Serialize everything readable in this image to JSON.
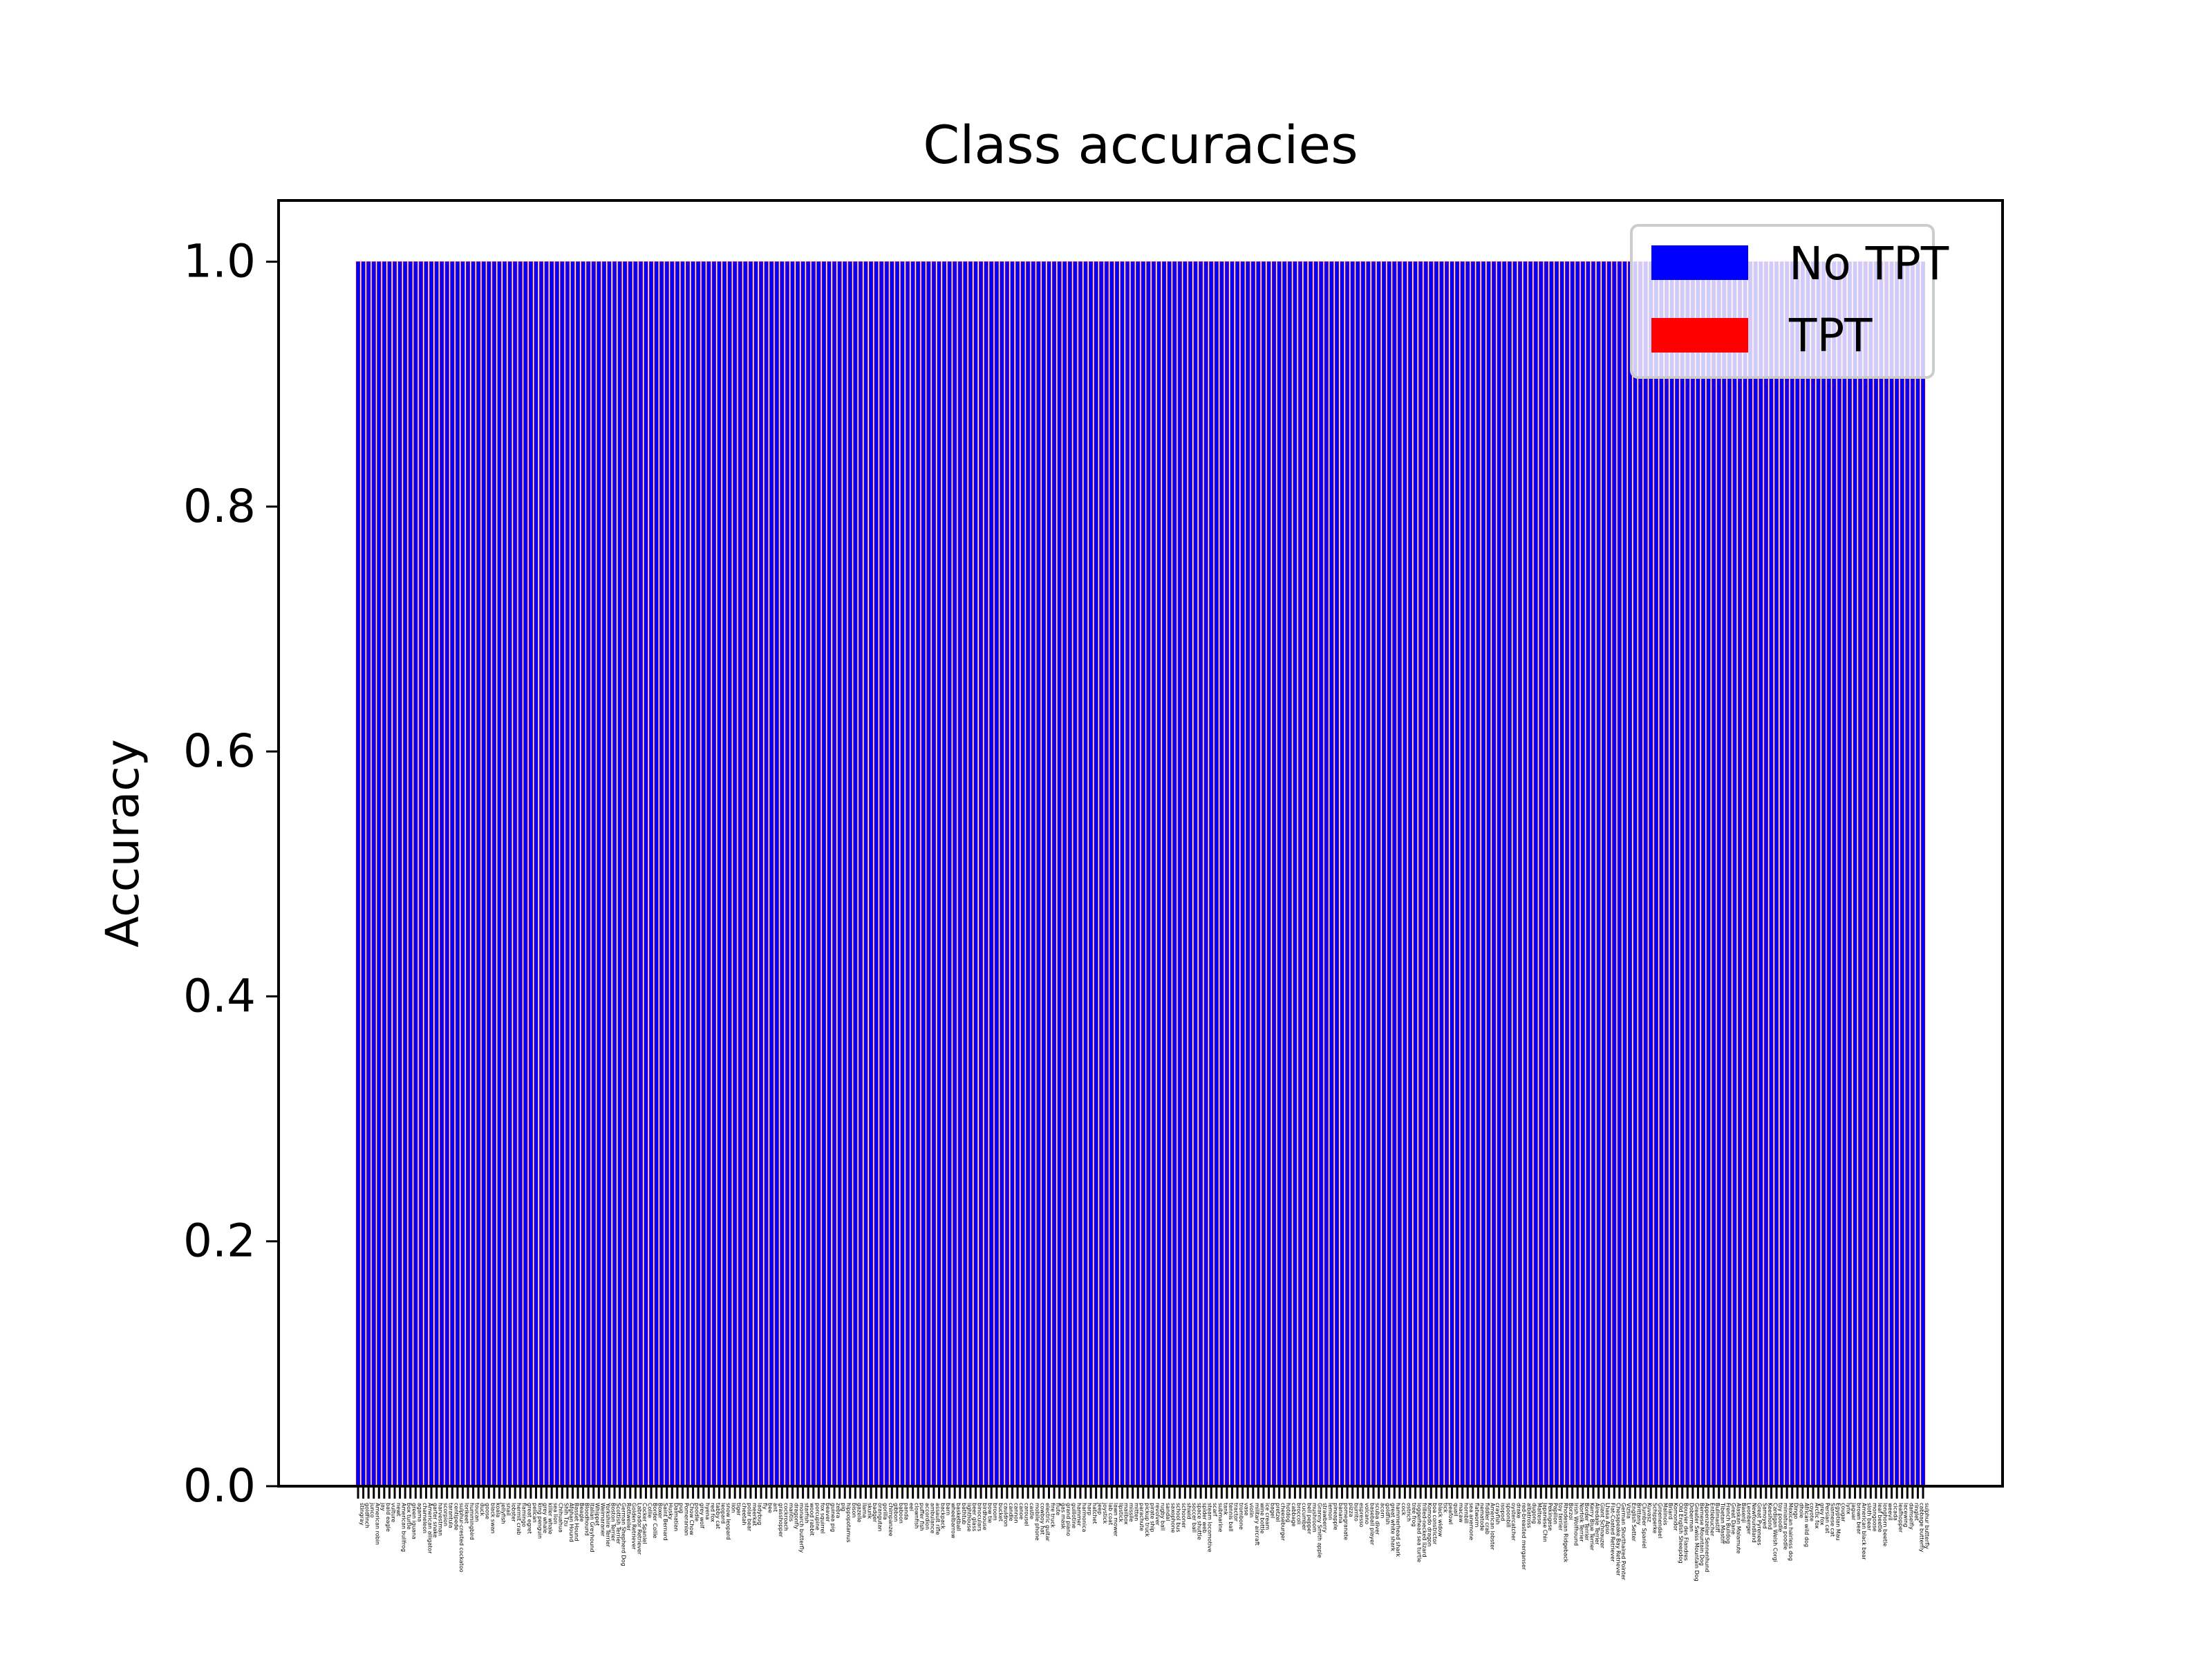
{
  "chart_data": {
    "type": "bar",
    "title": "Class accuracies",
    "xlabel": "",
    "ylabel": "Accuracy",
    "ylim": [
      0,
      1.05
    ],
    "yticks": [
      "0.0",
      "0.2",
      "0.4",
      "0.6",
      "0.8",
      "1.0"
    ],
    "grid": false,
    "legend": {
      "placement": "top-right",
      "entries": [
        "No TPT",
        "TPT"
      ]
    },
    "colors": {
      "No TPT": "#0000ff",
      "TPT": "#ff0000",
      "background": "#ffffff",
      "axes": "#000000"
    },
    "categories": [
      "stingray",
      "goldfinch",
      "junco",
      "American robin",
      "jay",
      "bald eagle",
      "vulture",
      "newt",
      "American bullfrog",
      "box turtle",
      "green iguana",
      "agama",
      "chameleon",
      "American alligator",
      "garter snake",
      "harvestman",
      "scorpion",
      "tarantula",
      "centipede",
      "sulphur-crested cockatoo",
      "lorikeet",
      "hummingbird",
      "toucan",
      "duck",
      "goose",
      "black swan",
      "koala",
      "jellyfish",
      "snail",
      "lobster",
      "hermit crab",
      "flamingo",
      "great egret",
      "pelican",
      "king penguin",
      "grey whale",
      "killer whale",
      "sea lion",
      "Chihuahua",
      "Shih Tzu",
      "Afghan Hound",
      "Basset Hound",
      "Beagle",
      "Bloodhound",
      "Italian Greyhound",
      "Whippet",
      "Weimaraner",
      "Yorkshire Terrier",
      "Boston Terrier",
      "Scottish Terrier",
      "German Shepherd Dog",
      "Rottweiler",
      "Golden Retriever",
      "Labrador Retriever",
      "Cocker Spaniel",
      "Collie",
      "Border Collie",
      "Boxer",
      "Saint Bernard",
      "Husky",
      "Dalmatian",
      "pug",
      "Pomeranian",
      "Chow Chow",
      "poodle",
      "grey wolf",
      "hyena",
      "red fox",
      "tabby cat",
      "leopard",
      "snow leopard",
      "lion",
      "tiger",
      "cheetah",
      "polar bear",
      "meerkat",
      "ladybug",
      "fly",
      "bee",
      "ant",
      "grasshopper",
      "cockroach",
      "mantis",
      "dragonfly",
      "monarch butterfly",
      "starfish",
      "wood rabbit",
      "porcupine",
      "fox squirrel",
      "beaver",
      "guinea pig",
      "zebra",
      "pig",
      "hippopotamus",
      "bison",
      "gazelle",
      "llama",
      "skunk",
      "badger",
      "orangutan",
      "gorilla",
      "chimpanzee",
      "gibbon",
      "baboon",
      "panda",
      "eel",
      "clownfish",
      "puffer fish",
      "accordion",
      "ambulance",
      "assault rifle",
      "backpack",
      "barn",
      "wheelbarrow",
      "basketball",
      "bathtub",
      "lighthouse",
      "beer glass",
      "binoculars",
      "birdhouse",
      "bow tie",
      "broom",
      "bucket",
      "cauldron",
      "candle",
      "cannon",
      "canoe",
      "carousel",
      "castle",
      "mobile phone",
      "cowboy hat",
      "electric guitar",
      "fire truck",
      "flute",
      "gas mask",
      "grand piano",
      "guillotine",
      "hammer",
      "harmonica",
      "harp",
      "hatchet",
      "jeep",
      "joystick",
      "lab coat",
      "lawn mower",
      "lipstick",
      "mailbox",
      "missile",
      "mitten",
      "parachute",
      "pickup truck",
      "pirate ship",
      "revolver",
      "rugby ball",
      "sandal",
      "saxophone",
      "school bus",
      "schooner",
      "shield",
      "soccer ball",
      "space shuttle",
      "spider web",
      "steam locomotive",
      "scarf",
      "submarine",
      "tank",
      "tennis ball",
      "tractor",
      "trombone",
      "vase",
      "violin",
      "military aircraft",
      "wine bottle",
      "ice cream",
      "bagel",
      "pretzel",
      "cheeseburger",
      "hotdog",
      "cabbage",
      "broccoli",
      "cucumber",
      "bell pepper",
      "mushroom",
      "Granny Smith apple",
      "strawberry",
      "lemon",
      "pineapple",
      "banana",
      "pomegranate",
      "pizza",
      "burrito",
      "espresso",
      "volcano",
      "baseball player",
      "scuba diver",
      "acorn",
      "goldfish",
      "great white shark",
      "hammerhead shark",
      "cock",
      "ostrich",
      "tree frog",
      "loggerhead sea turtle",
      "frilled-necked lizard",
      "Komodo dragon",
      "boa constrictor",
      "black widow",
      "tick",
      "peafowl",
      "quail",
      "macaw",
      "hornbill",
      "sea anemone",
      "flatworm",
      "nematode",
      "fiddler crab",
      "American lobster",
      "crayfish",
      "isopod",
      "spoonbill",
      "oystercatcher",
      "drake",
      "red-breasted merganser",
      "albatross",
      "dugong",
      "Maltese",
      "Japanese Chin",
      "Pekingese",
      "Papillon",
      "toy terrier",
      "Rhodesian Ridgeback",
      "Borzoi",
      "Irish Wolfhound",
      "Norfolk Terrier",
      "Border Terrier",
      "Kerry Blue Terrier",
      "Airedale Terrier",
      "Giant Schnauzer",
      "Lhasa Apso",
      "Flat-Coated Retriever",
      "Chesapeake Bay Retriever",
      "German Shorthaired Pointer",
      "Vizsla",
      "English Setter",
      "Brittany",
      "Clumber Spaniel",
      "Kuvasz",
      "Schipperke",
      "Groenendael",
      "Malinois",
      "Briard",
      "Komondor",
      "Old English Sheepdog",
      "Bouvier des Flandres",
      "Doberman",
      "Greater Swiss Mountain Dog",
      "Bernese Mountain Dog",
      "Appenzeller Sennenhund",
      "Entlebucher",
      "Bullmastiff",
      "Tibetan Mastiff",
      "French Bulldog",
      "Great Dane",
      "Alaskan Malamute",
      "Basenji",
      "Leonberger",
      "Newfoundland",
      "Great Pyrenees",
      "Samoyed",
      "Keeshond",
      "Cardigan Welsh Corgi",
      "toy poodle",
      "miniature poodle",
      "Mexican hairless dog",
      "Dingo",
      "dhole",
      "African wild dog",
      "coyote",
      "Arctic fox",
      "grey fox",
      "Persian cat",
      "Siamese cat",
      "Egyptian Mau",
      "cougar",
      "lynx",
      "jaguar",
      "brown bear",
      "American black bear",
      "sloth bear",
      "mongoose",
      "leaf beetle",
      "longhorn beetle",
      "weevil",
      "cicada",
      "leafhopper",
      "lacewing",
      "damselfly",
      "ringlet",
      "cabbage butterfly",
      "sulphur butterfly"
    ],
    "series": [
      {
        "name": "No TPT",
        "value_all": 1.0
      },
      {
        "name": "TPT",
        "value_all": 1.0
      }
    ]
  }
}
